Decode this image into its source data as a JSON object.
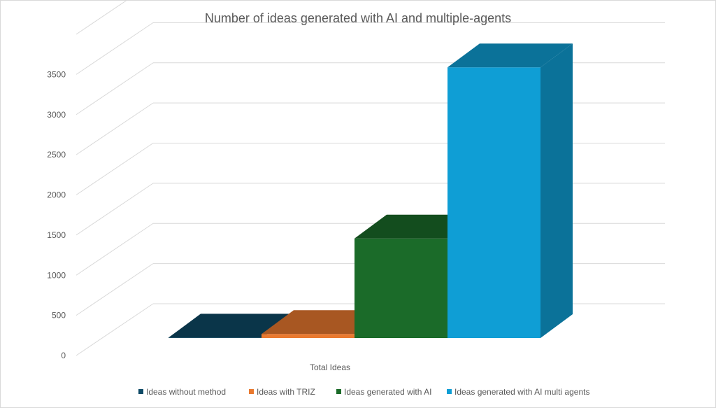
{
  "chart_data": {
    "type": "bar",
    "style": "3d-clustered-column",
    "title": "Number of ideas generated with AI and multiple-agents",
    "categories": [
      "Total Ideas"
    ],
    "series": [
      {
        "name": "Ideas without method",
        "values": [
          5
        ],
        "color": "#0E4A66"
      },
      {
        "name": "Ideas with TRIZ",
        "values": [
          50
        ],
        "color": "#E9792F"
      },
      {
        "name": "Ideas generated with AI",
        "values": [
          1240
        ],
        "color": "#1B6B29"
      },
      {
        "name": "Ideas generated with AI multi agents",
        "values": [
          3370
        ],
        "color": "#0F9ED5"
      }
    ],
    "yticks": [
      0,
      500,
      1000,
      1500,
      2000,
      2500,
      3000,
      3500
    ],
    "ylim": [
      0,
      4000
    ],
    "grid": true,
    "legend": "bottom",
    "xlabel": "",
    "ylabel": ""
  }
}
